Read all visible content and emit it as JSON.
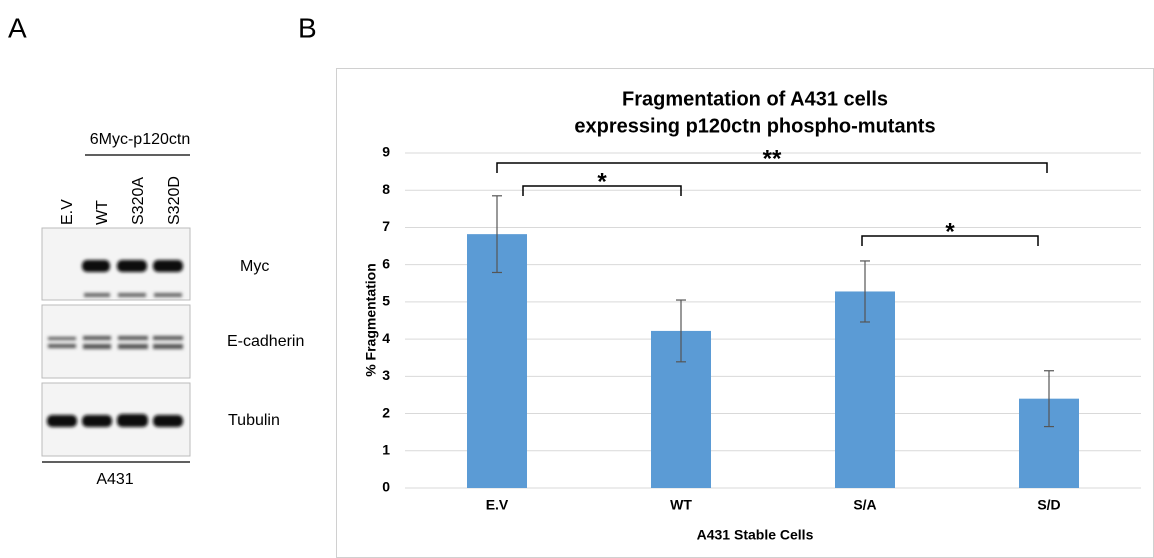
{
  "panel_a": {
    "label": "A",
    "header": "6Myc-p120ctn",
    "lanes": [
      "E.V",
      "WT",
      "S320A",
      "S320D"
    ],
    "blots": [
      "Myc",
      "E-cadherin",
      "Tubulin"
    ],
    "cell_line": "A431"
  },
  "panel_b_label": "B",
  "chart_data": {
    "type": "bar",
    "title": [
      "Fragmentation of A431 cells",
      "expressing p120ctn phospho-mutants"
    ],
    "x_label": "A431 Stable Cells",
    "y_label": "% Fragmentation",
    "categories": [
      "E.V",
      "WT",
      "S/A",
      "S/D"
    ],
    "values": [
      6.82,
      4.22,
      5.28,
      2.4
    ],
    "errors": [
      1.03,
      0.83,
      0.82,
      0.75
    ],
    "color": "#5b9bd5",
    "ylim": [
      0,
      9
    ],
    "yticks": [
      0,
      1,
      2,
      3,
      4,
      5,
      6,
      7,
      8,
      9
    ],
    "grid": true,
    "annotations": [
      "**",
      "*",
      "*"
    ]
  }
}
